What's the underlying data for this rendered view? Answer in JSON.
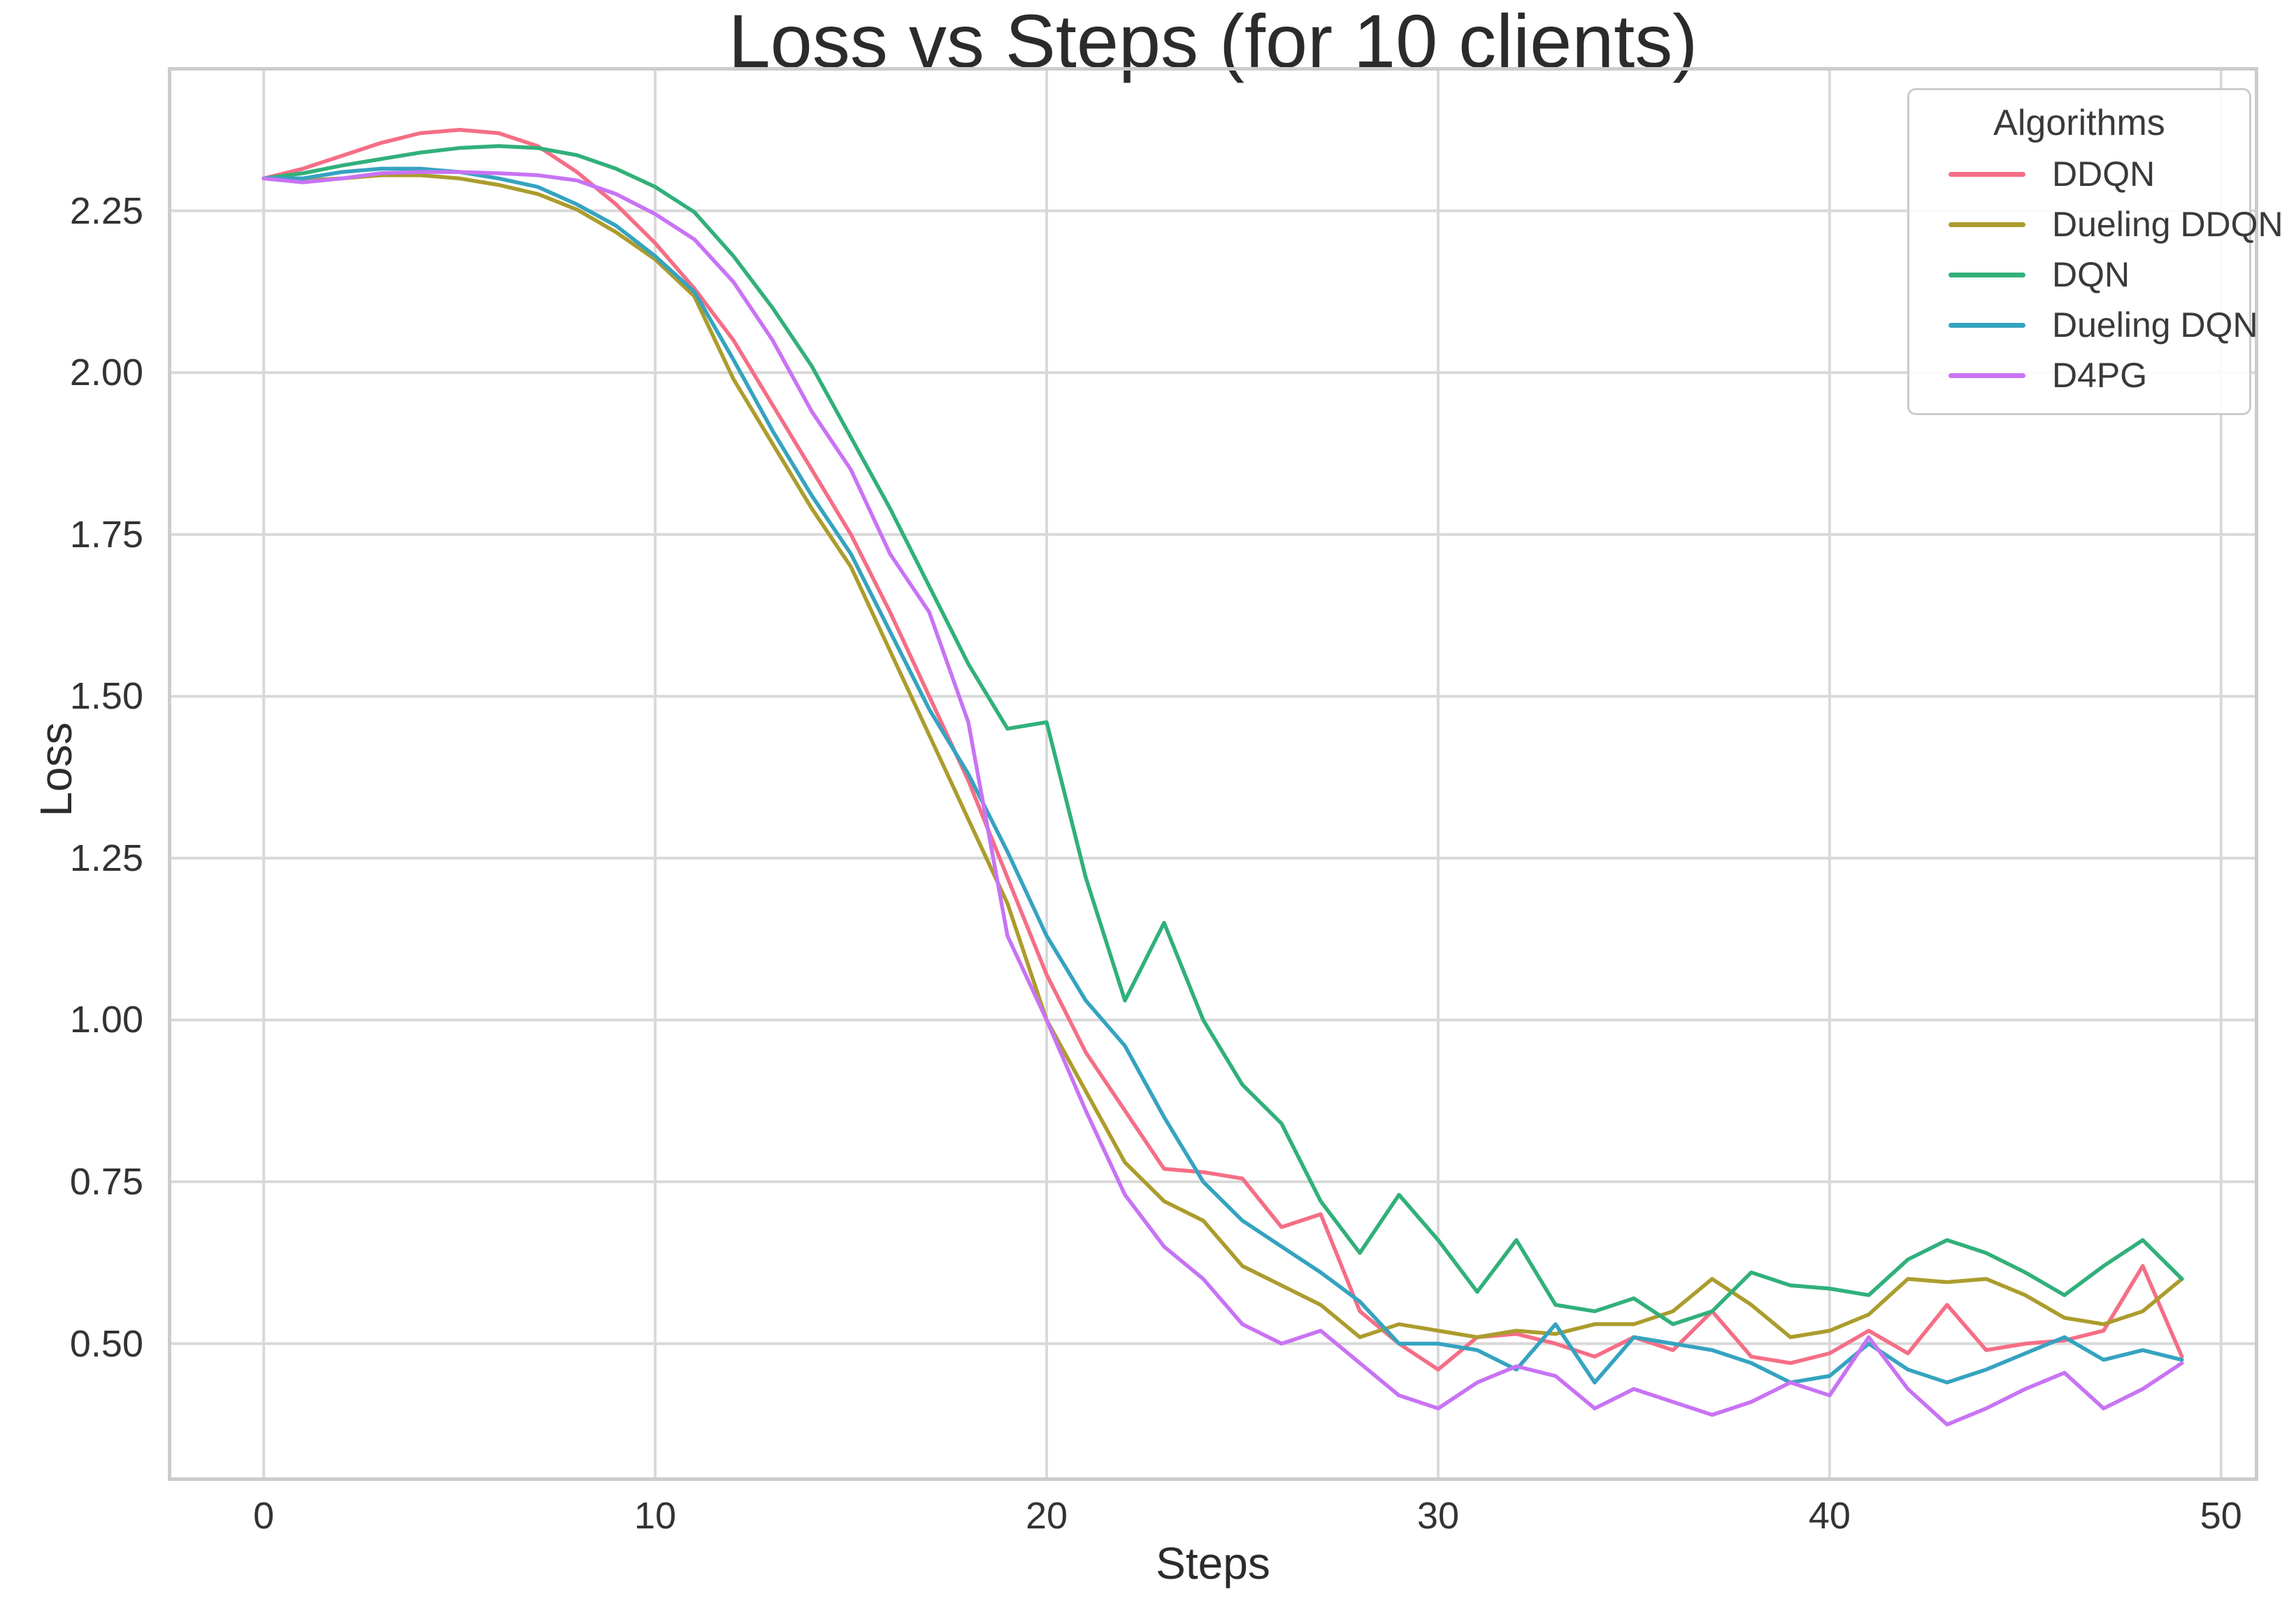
{
  "figure": {
    "title": "Loss vs Steps (for 10 clients)",
    "xlabel": "Steps",
    "ylabel": "Loss"
  },
  "legend": {
    "title": "Algorithms",
    "entries": [
      "DDQN",
      "Dueling DDQN",
      "DQN",
      "Dueling DQN",
      "D4PG"
    ]
  },
  "axes": {
    "x_tick_labels": [
      "0",
      "10",
      "20",
      "30",
      "40",
      "50"
    ],
    "y_tick_labels": [
      "0.50",
      "0.75",
      "1.00",
      "1.25",
      "1.50",
      "1.75",
      "2.00",
      "2.25"
    ]
  },
  "colors": {
    "grid": "#d9d9d9",
    "spine": "#cccccc",
    "background": "#ffffff",
    "text": "#2b2b2b"
  },
  "chart_data": {
    "type": "line",
    "title": "Loss vs Steps (for 10 clients)",
    "xlabel": "Steps",
    "ylabel": "Loss",
    "grid": true,
    "legend_position": "upper right",
    "legend_title": "Algorithms",
    "xlim": [
      -2.45,
      50.95
    ],
    "ylim": [
      0.288,
      2.472
    ],
    "x_ticks": [
      0,
      10,
      20,
      30,
      40,
      50
    ],
    "y_ticks": [
      0.5,
      0.75,
      1.0,
      1.25,
      1.5,
      1.75,
      2.0,
      2.25
    ],
    "x": [
      0,
      1,
      2,
      3,
      4,
      5,
      6,
      7,
      8,
      9,
      10,
      11,
      12,
      13,
      14,
      15,
      16,
      17,
      18,
      19,
      20,
      21,
      22,
      23,
      24,
      25,
      26,
      27,
      28,
      29,
      30,
      31,
      32,
      33,
      34,
      35,
      36,
      37,
      38,
      39,
      40,
      41,
      42,
      43,
      44,
      45,
      46,
      47,
      48,
      49
    ],
    "series": [
      {
        "name": "DDQN",
        "color": "#f56e86",
        "values": [
          2.3,
          2.315,
          2.335,
          2.355,
          2.37,
          2.375,
          2.37,
          2.35,
          2.31,
          2.26,
          2.2,
          2.13,
          2.05,
          1.95,
          1.85,
          1.75,
          1.63,
          1.5,
          1.37,
          1.22,
          1.07,
          0.95,
          0.86,
          0.77,
          0.765,
          0.755,
          0.68,
          0.7,
          0.55,
          0.5,
          0.46,
          0.51,
          0.515,
          0.5,
          0.48,
          0.51,
          0.49,
          0.55,
          0.48,
          0.47,
          0.485,
          0.52,
          0.485,
          0.56,
          0.49,
          0.5,
          0.505,
          0.52,
          0.62,
          0.48
        ]
      },
      {
        "name": "Dueling DDQN",
        "color": "#ac9c2d",
        "values": [
          2.3,
          2.297,
          2.3,
          2.305,
          2.305,
          2.3,
          2.29,
          2.276,
          2.252,
          2.217,
          2.175,
          2.118,
          1.99,
          1.89,
          1.79,
          1.7,
          1.57,
          1.44,
          1.31,
          1.18,
          1.0,
          0.89,
          0.78,
          0.72,
          0.69,
          0.62,
          0.59,
          0.56,
          0.51,
          0.53,
          0.52,
          0.51,
          0.52,
          0.515,
          0.53,
          0.53,
          0.55,
          0.6,
          0.56,
          0.51,
          0.52,
          0.545,
          0.6,
          0.595,
          0.6,
          0.575,
          0.54,
          0.53,
          0.55,
          0.6
        ]
      },
      {
        "name": "DQN",
        "color": "#31b07a",
        "values": [
          2.3,
          2.308,
          2.32,
          2.33,
          2.34,
          2.347,
          2.35,
          2.347,
          2.336,
          2.315,
          2.287,
          2.248,
          2.18,
          2.1,
          2.01,
          1.9,
          1.79,
          1.67,
          1.55,
          1.45,
          1.46,
          1.22,
          1.03,
          1.15,
          1.0,
          0.9,
          0.84,
          0.72,
          0.64,
          0.73,
          0.66,
          0.58,
          0.66,
          0.56,
          0.55,
          0.57,
          0.53,
          0.55,
          0.61,
          0.59,
          0.585,
          0.575,
          0.63,
          0.66,
          0.64,
          0.61,
          0.575,
          0.62,
          0.66,
          0.6
        ]
      },
      {
        "name": "Dueling DQN",
        "color": "#35a3c0",
        "values": [
          2.3,
          2.3,
          2.31,
          2.315,
          2.315,
          2.31,
          2.3,
          2.287,
          2.26,
          2.227,
          2.18,
          2.125,
          2.02,
          1.91,
          1.81,
          1.72,
          1.6,
          1.48,
          1.38,
          1.26,
          1.13,
          1.03,
          0.96,
          0.85,
          0.75,
          0.69,
          0.65,
          0.61,
          0.565,
          0.5,
          0.5,
          0.49,
          0.46,
          0.53,
          0.44,
          0.51,
          0.5,
          0.49,
          0.47,
          0.44,
          0.45,
          0.5,
          0.46,
          0.44,
          0.46,
          0.485,
          0.51,
          0.475,
          0.49,
          0.475
        ]
      },
      {
        "name": "D4PG",
        "color": "#c873f4",
        "values": [
          2.3,
          2.294,
          2.3,
          2.308,
          2.31,
          2.31,
          2.308,
          2.305,
          2.297,
          2.276,
          2.245,
          2.206,
          2.14,
          2.05,
          1.94,
          1.85,
          1.72,
          1.63,
          1.46,
          1.13,
          1.0,
          0.86,
          0.73,
          0.65,
          0.6,
          0.53,
          0.5,
          0.52,
          0.47,
          0.42,
          0.4,
          0.44,
          0.465,
          0.45,
          0.4,
          0.43,
          0.41,
          0.39,
          0.41,
          0.44,
          0.42,
          0.51,
          0.43,
          0.375,
          0.4,
          0.43,
          0.455,
          0.4,
          0.43,
          0.47
        ]
      }
    ]
  }
}
